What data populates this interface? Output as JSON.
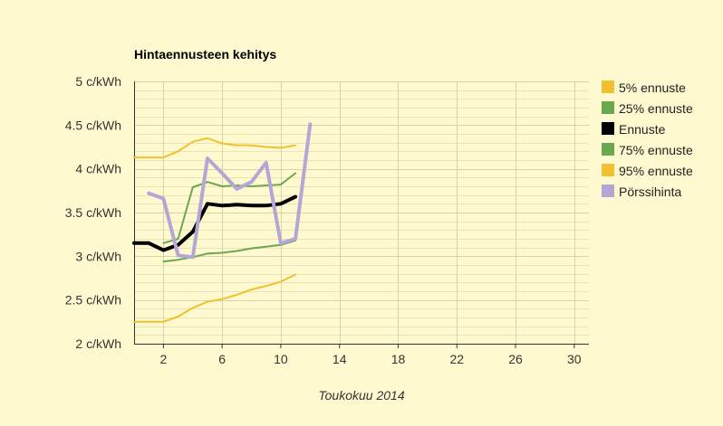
{
  "chart_data": {
    "type": "line",
    "title": "Hintaennusteen kehitys",
    "xlabel": "Toukokuu 2014",
    "ylabel": "",
    "xlim": [
      0,
      31
    ],
    "ylim": [
      2,
      5
    ],
    "x_ticks": [
      2,
      6,
      10,
      14,
      18,
      22,
      26,
      30
    ],
    "y_ticks": [
      {
        "value": 2,
        "label": "2 c/kWh"
      },
      {
        "value": 2.5,
        "label": "2.5 c/kWh"
      },
      {
        "value": 3,
        "label": "3 c/kWh"
      },
      {
        "value": 3.5,
        "label": "3.5 c/kWh"
      },
      {
        "value": 4,
        "label": "4 c/kWh"
      },
      {
        "value": 4.5,
        "label": "4.5 c/kWh"
      },
      {
        "value": 5,
        "label": "5 c/kWh"
      }
    ],
    "grid": true,
    "legend_position": "right",
    "series": [
      {
        "name": "5% ennuste",
        "color": "#f0c030",
        "x": [
          0,
          1,
          2,
          3,
          4,
          5,
          6,
          7,
          8,
          9,
          10,
          11
        ],
        "y": [
          2.25,
          2.25,
          2.25,
          2.31,
          2.41,
          2.48,
          2.51,
          2.56,
          2.62,
          2.66,
          2.71,
          2.79
        ]
      },
      {
        "name": "25% ennuste",
        "color": "#6aa84f",
        "x": [
          2,
          3,
          4,
          5,
          6,
          7,
          8,
          9,
          10,
          11
        ],
        "y": [
          2.94,
          2.96,
          2.99,
          3.03,
          3.04,
          3.06,
          3.09,
          3.11,
          3.13,
          3.18
        ]
      },
      {
        "name": "Ennuste",
        "color": "#000000",
        "x": [
          0,
          1,
          2,
          3,
          4,
          5,
          6,
          7,
          8,
          9,
          10,
          11
        ],
        "y": [
          3.15,
          3.15,
          3.07,
          3.13,
          3.28,
          3.6,
          3.58,
          3.59,
          3.58,
          3.58,
          3.6,
          3.68
        ]
      },
      {
        "name": "75% ennuste",
        "color": "#6aa84f",
        "x": [
          2,
          3,
          4,
          5,
          6,
          7,
          8,
          9,
          10,
          11
        ],
        "y": [
          3.15,
          3.2,
          3.79,
          3.85,
          3.8,
          3.81,
          3.8,
          3.81,
          3.82,
          3.95
        ]
      },
      {
        "name": "95% ennuste",
        "color": "#f0c030",
        "x": [
          0,
          1,
          2,
          3,
          4,
          5,
          6,
          7,
          8,
          9,
          10,
          11
        ],
        "y": [
          4.13,
          4.13,
          4.13,
          4.2,
          4.31,
          4.35,
          4.29,
          4.27,
          4.27,
          4.25,
          4.24,
          4.27
        ]
      },
      {
        "name": "Pörssihinta",
        "color": "#b4a7d6",
        "x": [
          1,
          2,
          3,
          4,
          5,
          6,
          7,
          8,
          9,
          10,
          11,
          12
        ],
        "y": [
          3.72,
          3.66,
          3.01,
          2.99,
          4.12,
          3.95,
          3.77,
          3.85,
          4.07,
          3.15,
          3.2,
          4.51
        ]
      }
    ]
  }
}
